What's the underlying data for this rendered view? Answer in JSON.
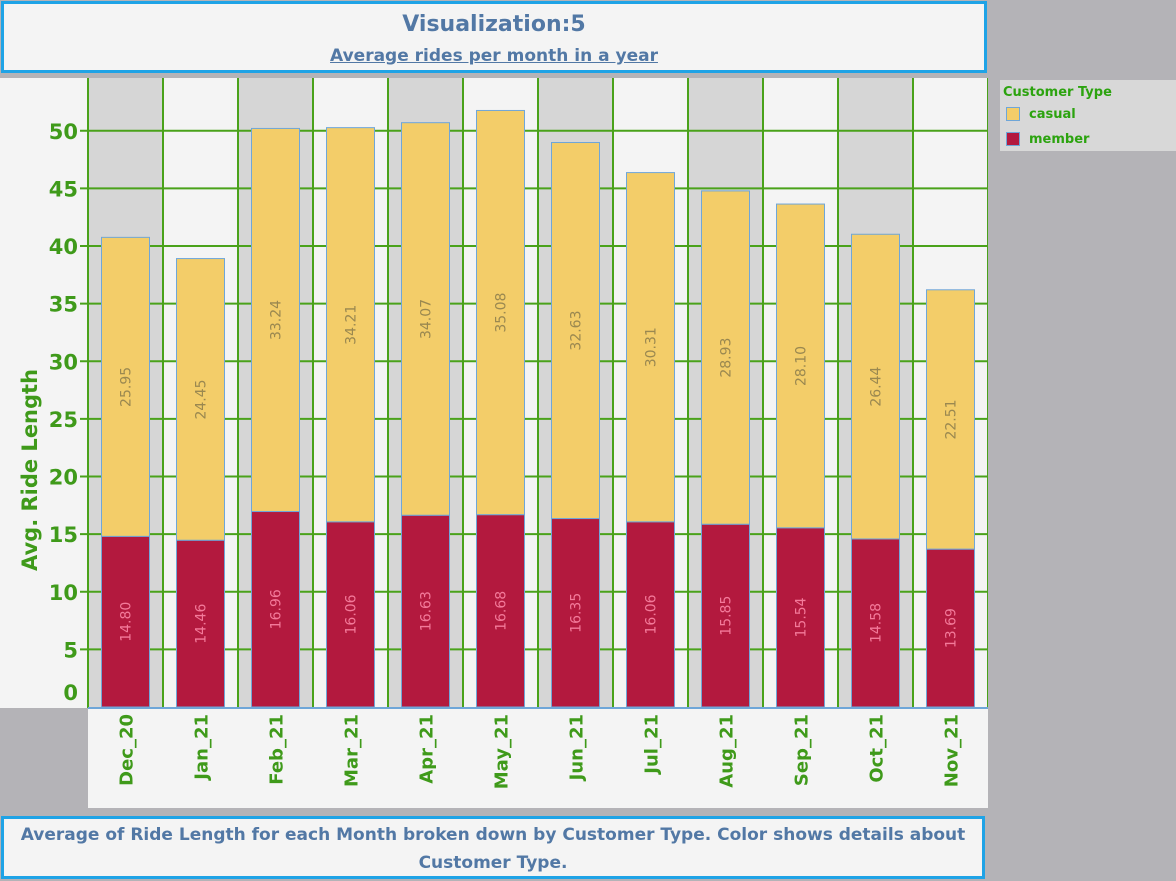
{
  "header": {
    "title": "Visualization:5",
    "subtitle": "Average rides per month in  a year"
  },
  "legend": {
    "title": "Customer Type",
    "items": [
      {
        "label": "casual",
        "color": "#f3cd69"
      },
      {
        "label": "member",
        "color": "#b3193e"
      }
    ]
  },
  "caption": {
    "line1": "Average of Ride Length for each Month broken down by Customer Type.  Color shows details about",
    "line2": "Customer Type."
  },
  "colors": {
    "casual": "#f3cd69",
    "member": "#b3193e",
    "grid": "#4aa21a",
    "axis_text": "#3f9a1a",
    "member_label": "#f37a9a",
    "casual_label": "#9a8850"
  },
  "chart_data": {
    "type": "bar",
    "stacked": true,
    "categories": [
      "Dec_20",
      "Jan_21",
      "Feb_21",
      "Mar_21",
      "Apr_21",
      "May_21",
      "Jun_21",
      "Jul_21",
      "Aug_21",
      "Sep_21",
      "Oct_21",
      "Nov_21"
    ],
    "series": [
      {
        "name": "member",
        "values": [
          14.8,
          14.46,
          16.96,
          16.06,
          16.63,
          16.68,
          16.35,
          16.06,
          15.85,
          15.54,
          14.58,
          13.69
        ]
      },
      {
        "name": "casual",
        "values": [
          25.95,
          24.45,
          33.24,
          34.21,
          34.07,
          35.08,
          32.63,
          30.31,
          28.93,
          28.1,
          26.44,
          22.51
        ]
      }
    ],
    "value_labels": {
      "member": [
        "14.80",
        "14.46",
        "16.96",
        "16.06",
        "16.63",
        "16.68",
        "16.35",
        "16.06",
        "15.85",
        "15.54",
        "14.58",
        "13.69"
      ],
      "casual": [
        "25.95",
        "24.45",
        "33.24",
        "34.21",
        "34.07",
        "35.08",
        "32.63",
        "30.31",
        "28.93",
        "28.10",
        "26.44",
        "22.51"
      ]
    },
    "ylabel": "Avg. Ride Length",
    "xlabel": "",
    "yticks": [
      "0",
      "5",
      "10",
      "15",
      "20",
      "25",
      "30",
      "35",
      "40",
      "45",
      "50"
    ],
    "ylim": [
      0,
      55
    ],
    "grid": true,
    "legend_position": "top-right"
  }
}
